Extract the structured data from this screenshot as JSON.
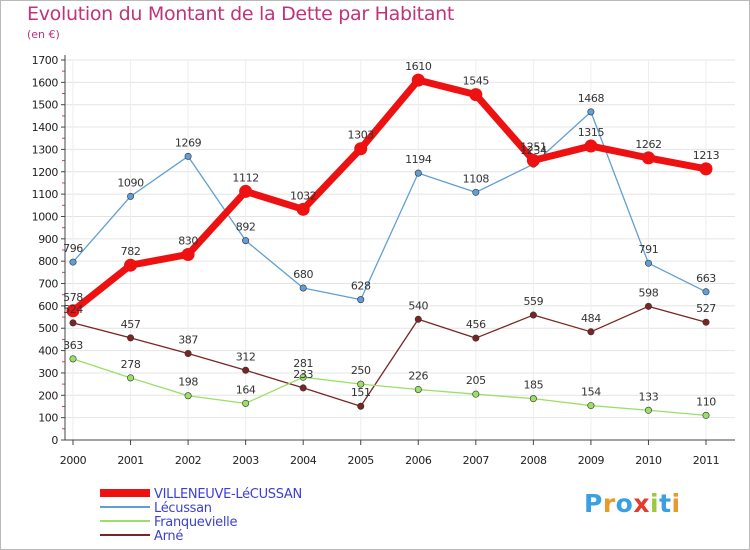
{
  "title": "Evolution du Montant de la Dette par Habitant",
  "subtitle": "(en €)",
  "logo": {
    "text": "Proxiti",
    "colors": [
      "#3aa0e0",
      "#e89a2a",
      "#3aa0e0",
      "#e23c2a",
      "#9bc93c",
      "#3aa0e0",
      "#e89a2a"
    ]
  },
  "colors": {
    "title": "#c0337a",
    "legend": "#3b3fd6",
    "axis": "#444444",
    "grid": "#e4e4e4"
  },
  "chart_data": {
    "type": "line",
    "x": [
      "2000",
      "2001",
      "2002",
      "2003",
      "2004",
      "2005",
      "2006",
      "2007",
      "2008",
      "2009",
      "2010",
      "2011"
    ],
    "yticks": [
      0,
      100,
      200,
      300,
      400,
      500,
      600,
      700,
      800,
      900,
      1000,
      1100,
      1200,
      1300,
      1400,
      1500,
      1600,
      1700
    ],
    "ylim": [
      0,
      1700
    ],
    "grid": true,
    "legend_position": "bottom-left",
    "series": [
      {
        "name": "VILLENEUVE-LéCUSSAN",
        "color": "#ee1111",
        "values": [
          578,
          782,
          830,
          1112,
          1032,
          1303,
          1610,
          1545,
          1251,
          1315,
          1262,
          1213
        ]
      },
      {
        "name": "Lécussan",
        "color": "#5f9fd5",
        "values": [
          796,
          1090,
          1269,
          892,
          680,
          628,
          1194,
          1108,
          1234,
          1468,
          791,
          663
        ]
      },
      {
        "name": "Franquevielle",
        "color": "#99e066",
        "values": [
          363,
          278,
          198,
          164,
          281,
          250,
          226,
          205,
          185,
          154,
          133,
          110
        ]
      },
      {
        "name": "Arné",
        "color": "#7a2525",
        "values": [
          524,
          457,
          387,
          312,
          233,
          151,
          540,
          456,
          559,
          484,
          598,
          527
        ]
      }
    ]
  }
}
